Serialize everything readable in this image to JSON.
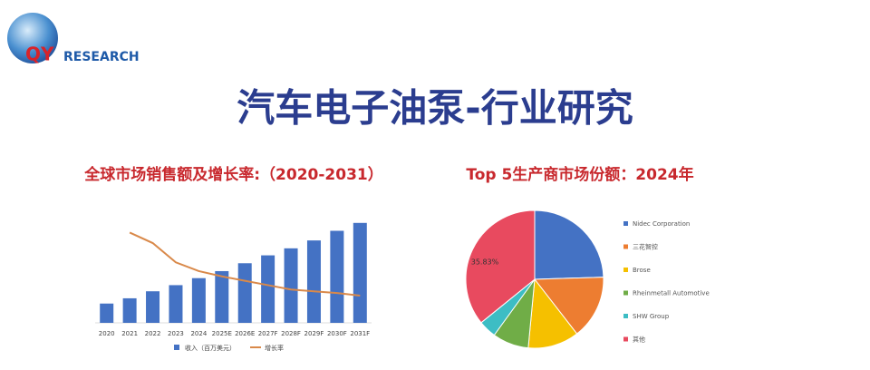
{
  "logo": {
    "prefix": "QY",
    "suffix": "RESEARCH"
  },
  "title": "汽车电子油泵-行业研究",
  "chart_data": [
    {
      "type": "bar_line",
      "title": "全球市场销售额及增长率:（2020-2031）",
      "categories": [
        "2020",
        "2021",
        "2022",
        "2023",
        "2024",
        "2025E",
        "2026E",
        "2027F",
        "2028F",
        "2029F",
        "2030F",
        "2031F"
      ],
      "ylim": [
        0,
        120
      ],
      "series": [
        {
          "name": "收入（百万美元）",
          "type": "bar",
          "color": "#4472c4",
          "values": [
            22,
            28,
            36,
            43,
            51,
            59,
            68,
            77,
            85,
            94,
            105,
            114
          ]
        },
        {
          "name": "增长率",
          "type": "line",
          "color": "#d9894a",
          "values": [
            null,
            103,
            91,
            69,
            59,
            53,
            48,
            43,
            38,
            36,
            34,
            31
          ]
        }
      ]
    },
    {
      "type": "pie",
      "title": "Top 5生产商市场份额：2024年",
      "categories": [
        "Nidec Corporation",
        "三花智控",
        "Brose",
        "Rheinmetall Automotive",
        "SHW Group",
        "其他"
      ],
      "colors": [
        "#4472c4",
        "#ed7d31",
        "#f5c000",
        "#70ad47",
        "#3dbdc4",
        "#e84a5f"
      ],
      "values": [
        24.5,
        15,
        12,
        8.5,
        4.17,
        35.83
      ],
      "value_labels": [
        null,
        null,
        null,
        null,
        null,
        "35.83%"
      ]
    }
  ]
}
